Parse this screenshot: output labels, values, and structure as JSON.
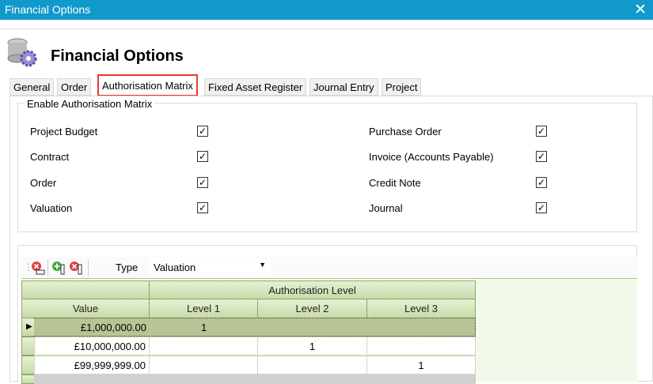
{
  "window": {
    "title": "Financial Options",
    "close_icon": "close-icon"
  },
  "header": {
    "title": "Financial Options",
    "icon": "coins-gear-icon"
  },
  "tabs": [
    {
      "label": "General"
    },
    {
      "label": "Order"
    },
    {
      "label": "Authorisation Matrix",
      "active": true
    },
    {
      "label": "Fixed Asset Register"
    },
    {
      "label": "Journal Entry"
    },
    {
      "label": "Project"
    }
  ],
  "group": {
    "legend": "Enable Authorisation Matrix",
    "left": [
      {
        "label": "Project Budget",
        "checked": true
      },
      {
        "label": "Contract",
        "checked": true
      },
      {
        "label": "Order",
        "checked": true
      },
      {
        "label": "Valuation",
        "checked": true
      }
    ],
    "right": [
      {
        "label": "Purchase Order",
        "checked": true
      },
      {
        "label": "Invoice (Accounts Payable)",
        "checked": true
      },
      {
        "label": "Credit Note",
        "checked": true
      },
      {
        "label": "Journal",
        "checked": true
      }
    ]
  },
  "toolbar": {
    "type_label": "Type",
    "type_value": "Valuation",
    "icons": [
      "delete-row-icon",
      "add-column-icon",
      "delete-column-icon"
    ]
  },
  "grid": {
    "group_header": "Authorisation Level",
    "columns": [
      "Value",
      "Level 1",
      "Level 2",
      "Level 3"
    ],
    "rows": [
      [
        "£1,000,000.00",
        "1",
        "",
        ""
      ],
      [
        "£10,000,000.00",
        "",
        "1",
        ""
      ],
      [
        "£99,999,999.00",
        "",
        "",
        "1"
      ]
    ]
  },
  "colors": {
    "titlebar": "#1199cc",
    "highlight": "#e53935",
    "grid_header": "#c8dba8",
    "selected_row": "#b7c495"
  }
}
